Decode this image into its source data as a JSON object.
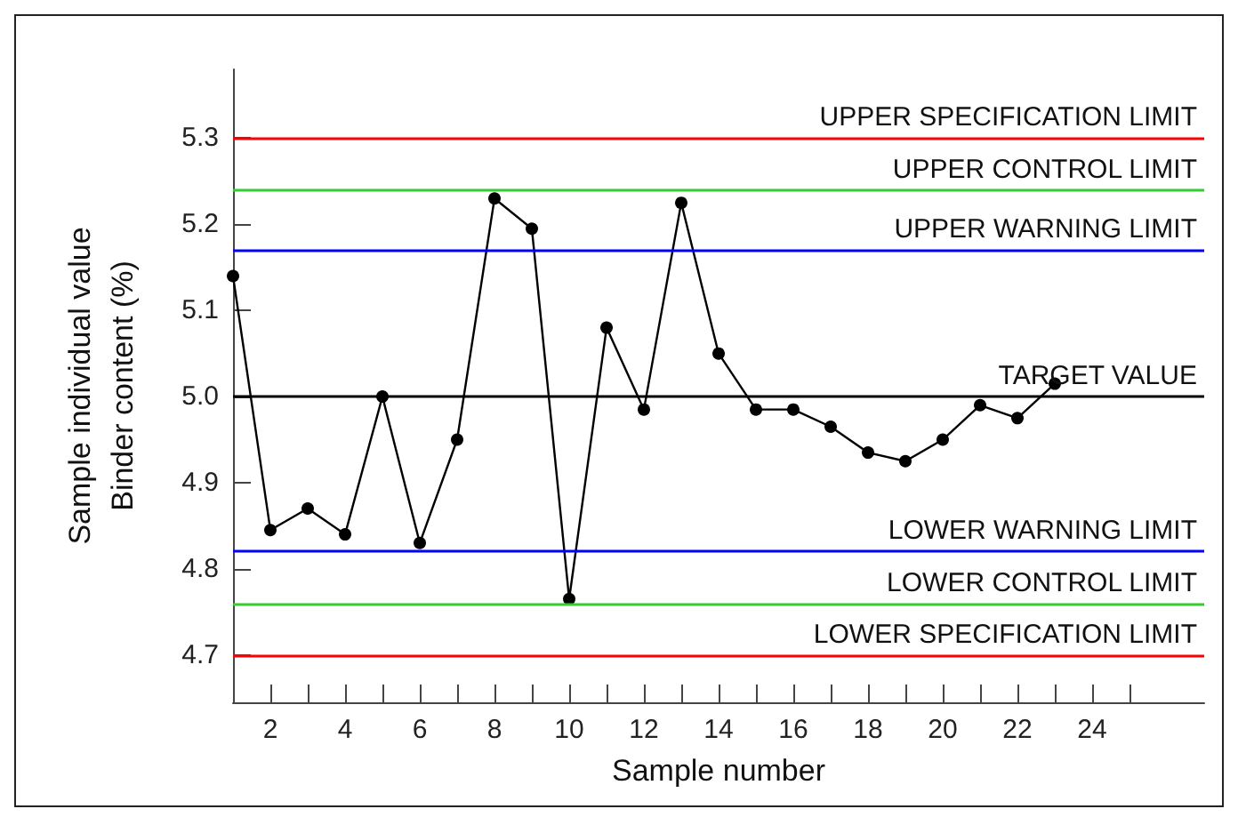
{
  "chart_data": {
    "type": "line",
    "xlabel": "Sample number",
    "ylabel": "Sample individual value\nBinder content (%)",
    "x": [
      1,
      2,
      3,
      4,
      5,
      6,
      7,
      8,
      9,
      10,
      11,
      12,
      13,
      14,
      15,
      16,
      17,
      18,
      19,
      20,
      21,
      22,
      23
    ],
    "series": [
      {
        "color": "#000000",
        "values": [
          5.14,
          4.845,
          4.87,
          4.84,
          5.0,
          4.83,
          4.95,
          5.23,
          5.195,
          4.765,
          5.08,
          4.985,
          5.225,
          5.05,
          4.985,
          4.985,
          4.965,
          4.935,
          4.925,
          4.95,
          4.99,
          4.975,
          5.015
        ]
      }
    ],
    "marker": "circle",
    "line_style": "solid",
    "grid": false,
    "xlim": [
      1,
      27
    ],
    "ylim": [
      4.645,
      5.38
    ],
    "xticks": [
      2,
      {
        "value": 3,
        "label": null
      },
      4,
      {
        "value": 5,
        "label": null
      },
      6,
      {
        "value": 7,
        "label": null
      },
      8,
      {
        "value": 9,
        "label": null
      },
      10,
      {
        "value": 11,
        "label": null
      },
      12,
      {
        "value": 13,
        "label": null
      },
      14,
      {
        "value": 15,
        "label": null
      },
      16,
      {
        "value": 17,
        "label": null
      },
      18,
      {
        "value": 19,
        "label": null
      },
      20,
      {
        "value": 21,
        "label": null
      },
      22,
      {
        "value": 23,
        "label": null
      },
      24,
      {
        "value": 25,
        "label": null
      }
    ],
    "yticks": [
      {
        "value": 4.7,
        "label": "4.7"
      },
      {
        "value": 4.8,
        "label": "4.8"
      },
      {
        "value": 4.9,
        "label": "4.9"
      },
      {
        "value": 5.0,
        "label": "5.0"
      },
      {
        "value": 5.1,
        "label": "5.1"
      },
      {
        "value": 5.2,
        "label": "5.2"
      },
      {
        "value": 5.3,
        "label": "5.3"
      }
    ],
    "ref_lines": [
      {
        "axis": "y",
        "value": 5.3,
        "label": "UPPER SPECIFICATION LIMIT",
        "color": "#ff0000"
      },
      {
        "axis": "y",
        "value": 5.24,
        "label": "UPPER CONTROL LIMIT",
        "color": "#33cc33"
      },
      {
        "axis": "y",
        "value": 5.17,
        "label": "UPPER WARNING LIMIT",
        "color": "#0000ff"
      },
      {
        "axis": "y",
        "value": 5.0,
        "label": "TARGET VALUE",
        "color": "#000000"
      },
      {
        "axis": "y",
        "value": 4.82,
        "label": "LOWER WARNING LIMIT",
        "color": "#0000ff"
      },
      {
        "axis": "y",
        "value": 4.76,
        "label": "LOWER CONTROL LIMIT",
        "color": "#33cc33"
      },
      {
        "axis": "y",
        "value": 4.7,
        "label": "LOWER SPECIFICATION LIMIT",
        "color": "#ff0000"
      }
    ]
  }
}
